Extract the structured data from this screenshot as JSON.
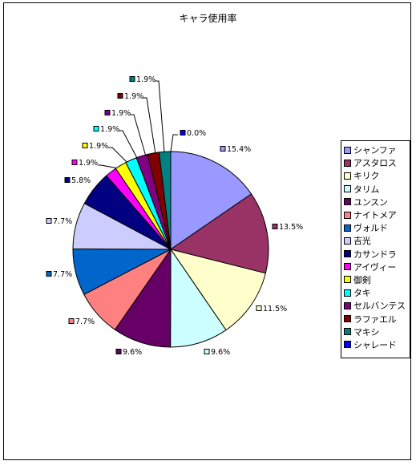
{
  "chart_data": {
    "type": "pie",
    "title": "キャラ使用率",
    "legend_position": "right",
    "series": [
      {
        "name": "シャンファ",
        "value": 15.4,
        "label": "15.4%",
        "color": "#9999ff"
      },
      {
        "name": "アスタロス",
        "value": 13.5,
        "label": "13.5%",
        "color": "#993366"
      },
      {
        "name": "キリク",
        "value": 11.5,
        "label": "11.5%",
        "color": "#ffffcc"
      },
      {
        "name": "タリム",
        "value": 9.6,
        "label": "9.6%",
        "color": "#ccffff"
      },
      {
        "name": "ユンスン",
        "value": 9.6,
        "label": "9.6%",
        "color": "#660066"
      },
      {
        "name": "ナイトメア",
        "value": 7.7,
        "label": "7.7%",
        "color": "#ff8080"
      },
      {
        "name": "ヴォルド",
        "value": 7.7,
        "label": "7.7%",
        "color": "#0066cc"
      },
      {
        "name": "吉光",
        "value": 7.7,
        "label": "7.7%",
        "color": "#ccccff"
      },
      {
        "name": "カサンドラ",
        "value": 5.8,
        "label": "5.8%",
        "color": "#000080"
      },
      {
        "name": "アイヴィー",
        "value": 1.9,
        "label": "1.9%",
        "color": "#ff00ff"
      },
      {
        "name": "御剣",
        "value": 1.9,
        "label": "1.9%",
        "color": "#ffff00"
      },
      {
        "name": "タキ",
        "value": 1.9,
        "label": "1.9%",
        "color": "#00ffff"
      },
      {
        "name": "セルバンテス",
        "value": 1.9,
        "label": "1.9%",
        "color": "#800080"
      },
      {
        "name": "ラファエル",
        "value": 1.9,
        "label": "1.9%",
        "color": "#800000"
      },
      {
        "name": "マキシ",
        "value": 1.9,
        "label": "1.9%",
        "color": "#008080"
      },
      {
        "name": "シャレード",
        "value": 0.0,
        "label": "0.0%",
        "color": "#0000ff"
      }
    ]
  }
}
